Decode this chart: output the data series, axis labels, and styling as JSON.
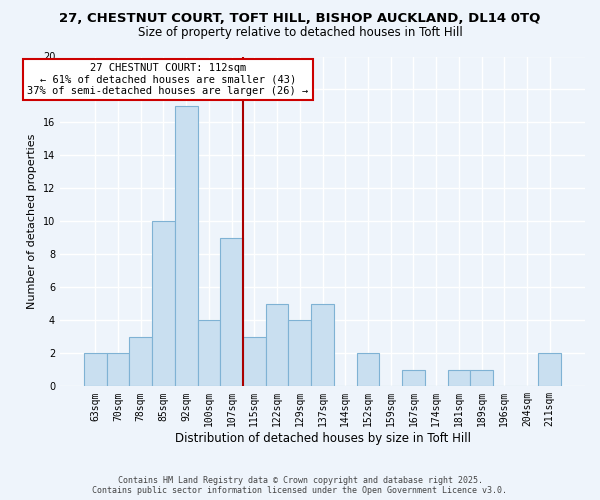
{
  "title_line1": "27, CHESTNUT COURT, TOFT HILL, BISHOP AUCKLAND, DL14 0TQ",
  "title_line2": "Size of property relative to detached houses in Toft Hill",
  "xlabel": "Distribution of detached houses by size in Toft Hill",
  "ylabel": "Number of detached properties",
  "bar_labels": [
    "63sqm",
    "70sqm",
    "78sqm",
    "85sqm",
    "92sqm",
    "100sqm",
    "107sqm",
    "115sqm",
    "122sqm",
    "129sqm",
    "137sqm",
    "144sqm",
    "152sqm",
    "159sqm",
    "167sqm",
    "174sqm",
    "181sqm",
    "189sqm",
    "196sqm",
    "204sqm",
    "211sqm"
  ],
  "bar_values": [
    2,
    2,
    3,
    10,
    17,
    4,
    9,
    3,
    5,
    4,
    5,
    0,
    2,
    0,
    1,
    0,
    1,
    1,
    0,
    0,
    2
  ],
  "bar_color": "#c9dff0",
  "bar_edge_color": "#7fb2d4",
  "vline_color": "#aa0000",
  "annotation_title": "27 CHESTNUT COURT: 112sqm",
  "annotation_line1": "← 61% of detached houses are smaller (43)",
  "annotation_line2": "37% of semi-detached houses are larger (26) →",
  "annotation_box_color": "#ffffff",
  "annotation_box_edge_color": "#cc0000",
  "ylim": [
    0,
    20
  ],
  "yticks": [
    0,
    2,
    4,
    6,
    8,
    10,
    12,
    14,
    16,
    18,
    20
  ],
  "footer_line1": "Contains HM Land Registry data © Crown copyright and database right 2025.",
  "footer_line2": "Contains public sector information licensed under the Open Government Licence v3.0.",
  "bg_color": "#eef4fb",
  "grid_color": "#ffffff"
}
